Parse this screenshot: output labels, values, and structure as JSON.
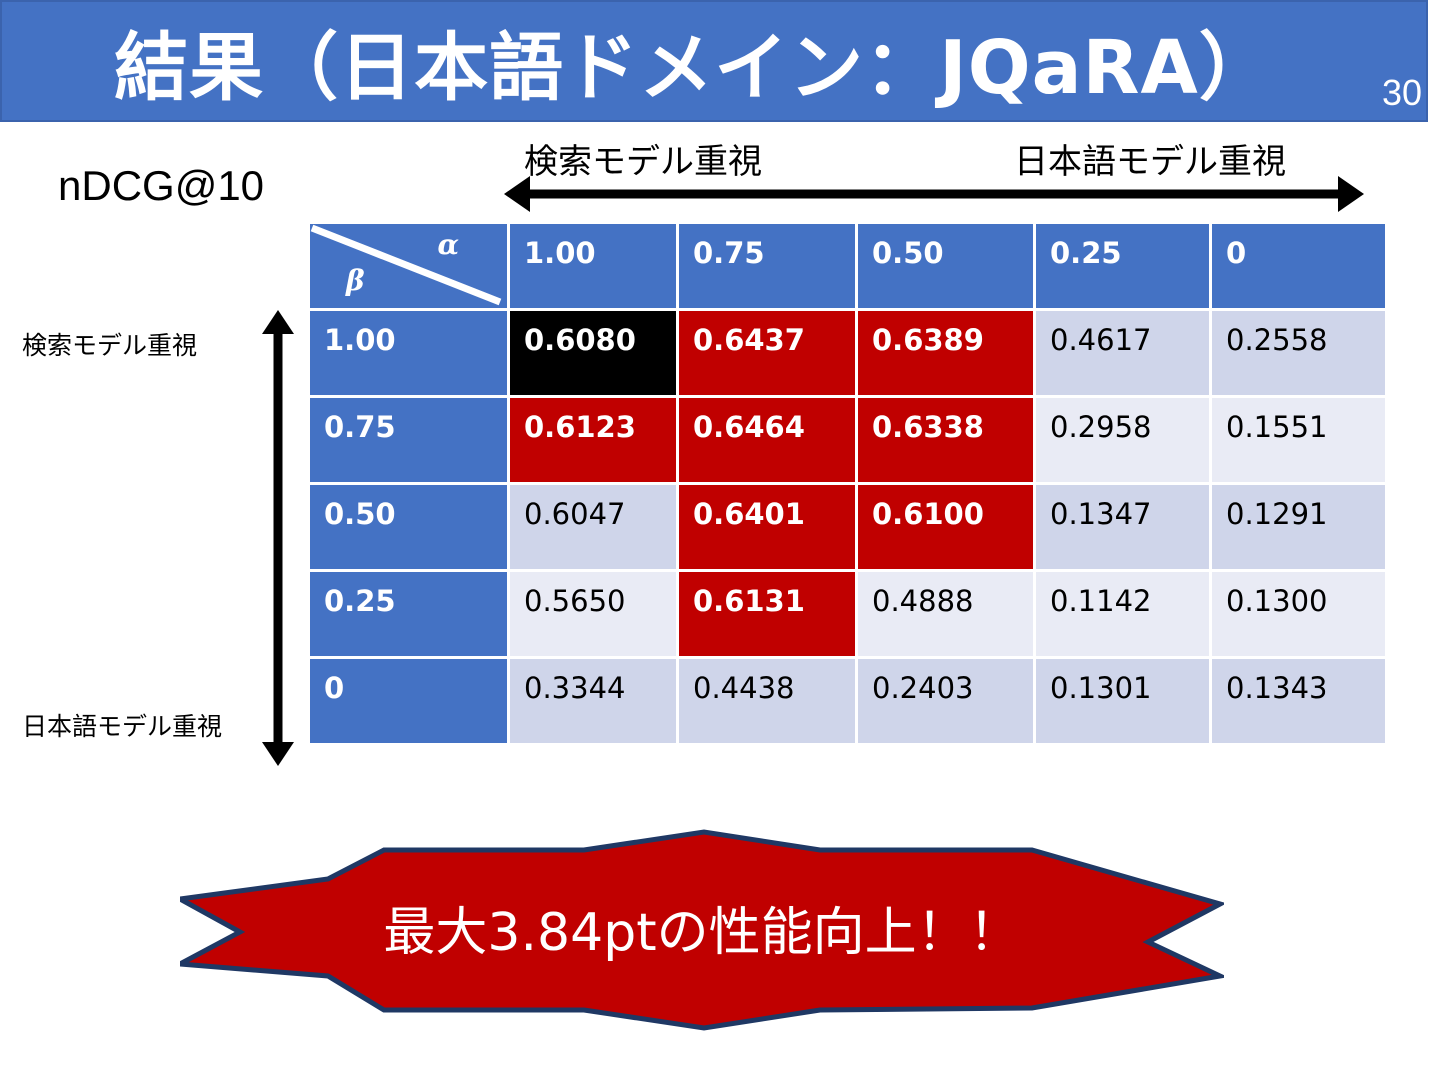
{
  "slide": {
    "title": "結果（日本語ドメイン：JQaRA）",
    "page_number": "30"
  },
  "metric_label": "nDCG@10",
  "horizontal_axis": {
    "left_label": "検索モデル重視",
    "right_label": "日本語モデル重視"
  },
  "vertical_axis": {
    "top_label": "検索モデル重視",
    "bottom_label": "日本語モデル重視"
  },
  "table": {
    "corner_alpha": "α",
    "corner_beta": "β",
    "alpha_headers": [
      "1.00",
      "0.75",
      "0.50",
      "0.25",
      "0"
    ],
    "rows": [
      {
        "beta": "1.00",
        "values": [
          "0.6080",
          "0.6437",
          "0.6389",
          "0.4617",
          "0.2558"
        ]
      },
      {
        "beta": "0.75",
        "values": [
          "0.6123",
          "0.6464",
          "0.6338",
          "0.2958",
          "0.1551"
        ]
      },
      {
        "beta": "0.50",
        "values": [
          "0.6047",
          "0.6401",
          "0.6100",
          "0.1347",
          "0.1291"
        ]
      },
      {
        "beta": "0.25",
        "values": [
          "0.5650",
          "0.6131",
          "0.4888",
          "0.1142",
          "0.1300"
        ]
      },
      {
        "beta": "0",
        "values": [
          "0.3344",
          "0.4438",
          "0.2403",
          "0.1301",
          "0.1343"
        ]
      }
    ]
  },
  "callout": {
    "text": "最大3.84ptの性能向上！！"
  },
  "colors": {
    "header_blue": "#4472c4",
    "highlight_red": "#c00000",
    "best_black": "#000000",
    "cell_light": "#cfd5ea",
    "cell_lighter": "#e9ebf5"
  }
}
